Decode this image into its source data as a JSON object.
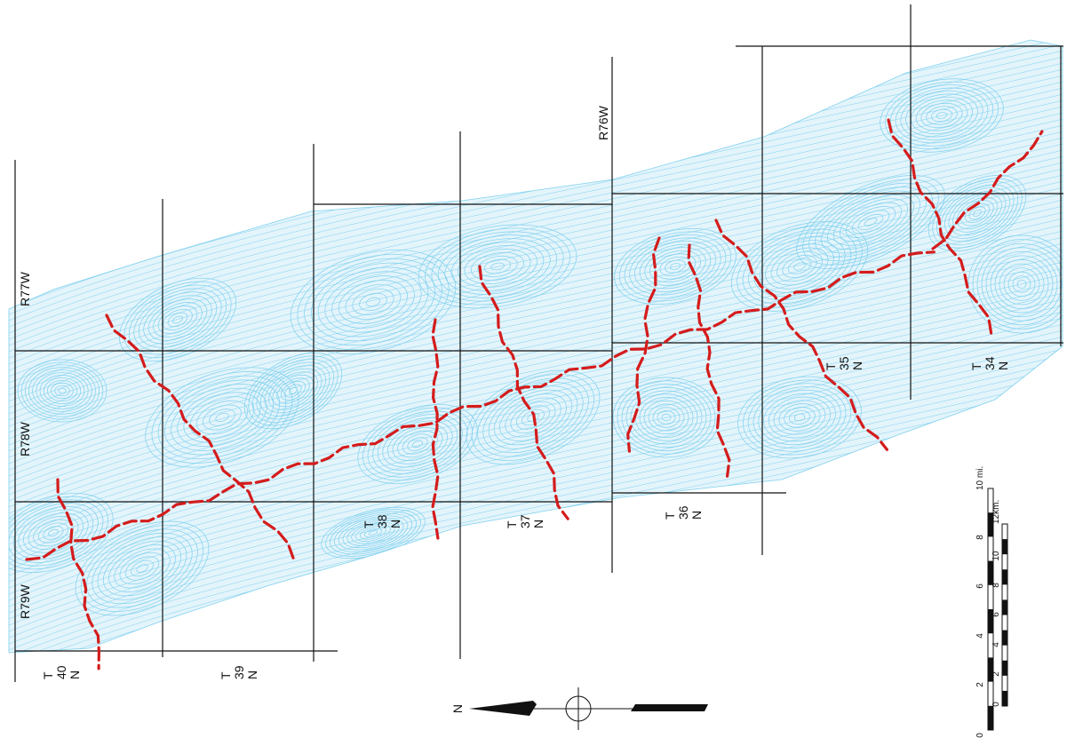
{
  "map": {
    "range_labels": [
      "R77W",
      "R78W",
      "R79W",
      "R76W"
    ],
    "township_labels": [
      {
        "t": "T",
        "num": "40",
        "n": "N"
      },
      {
        "t": "T",
        "num": "39",
        "n": "N"
      },
      {
        "t": "T",
        "num": "38",
        "n": "N"
      },
      {
        "t": "T",
        "num": "37",
        "n": "N"
      },
      {
        "t": "T",
        "num": "36",
        "n": "N"
      },
      {
        "t": "T",
        "num": "35",
        "n": "N"
      },
      {
        "t": "T",
        "num": "34",
        "n": "N"
      }
    ],
    "north_label": "N",
    "scale": {
      "miles_unit": "10 mi.",
      "miles_ticks": [
        "0",
        "2",
        "4",
        "6",
        "8"
      ],
      "km_unit": "12km.",
      "km_ticks": [
        "0",
        "2",
        "4",
        "6",
        "8",
        "10"
      ]
    },
    "colors": {
      "contour": "#7fd0ee",
      "lineament": "#d41c1c",
      "grid": "#111111"
    }
  }
}
